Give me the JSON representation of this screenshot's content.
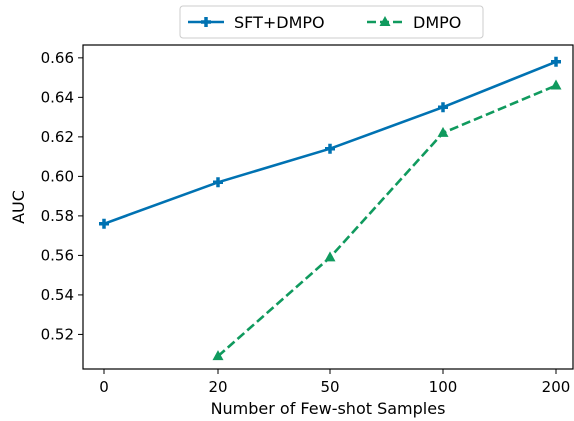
{
  "chart_data": {
    "type": "line",
    "categories": [
      "0",
      "20",
      "50",
      "100",
      "200"
    ],
    "series": [
      {
        "name": "SFT+DMPO",
        "color": "#0072b2",
        "line_style": "solid",
        "marker": "plus",
        "values": [
          0.576,
          0.597,
          0.614,
          0.635,
          0.658
        ]
      },
      {
        "name": "DMPO",
        "color": "#109a5e",
        "line_style": "dashed",
        "marker": "triangle",
        "values": [
          null,
          0.509,
          0.559,
          0.622,
          0.646
        ]
      }
    ],
    "xlabel": "Number of Few-shot Samples",
    "ylabel": "AUC",
    "ylim": [
      0.5025,
      0.6665
    ],
    "yticks": [
      0.52,
      0.54,
      0.56,
      0.58,
      0.6,
      0.62,
      0.64,
      0.66
    ],
    "ytick_labels": [
      "0.52",
      "0.54",
      "0.56",
      "0.58",
      "0.60",
      "0.62",
      "0.64",
      "0.66"
    ],
    "grid": false,
    "legend_placement": "top-center, outside plot"
  }
}
